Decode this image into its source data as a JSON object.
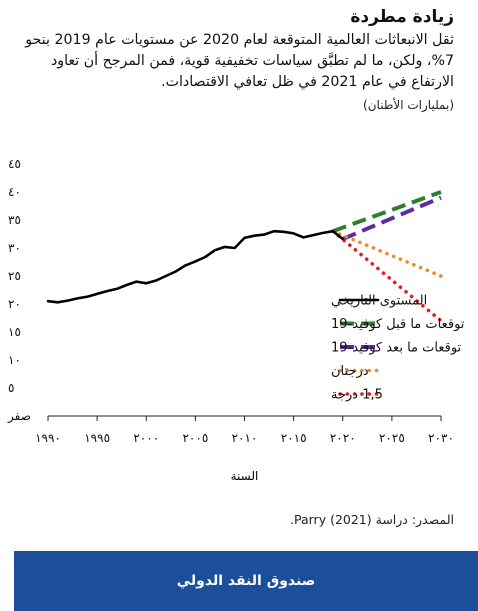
{
  "header": {
    "title": "زيادة مطردة",
    "subtitle": "ثقل الانبعاثات العالمية المتوقعة لعام 2020 عن مستويات عام 2019 بنحو 7%، ولكن، ما لم تطبَّق سياسات تخفيفية قوية، فمن المرجح أن تعاود الارتفاع في عام 2021 في ظل تعافي الاقتصادات.",
    "unit": "(بمليارات الأطنان)"
  },
  "source": "المصدر: دراسة (2021) Parry.",
  "footer": {
    "label": "صندوق النقد الدولي"
  },
  "colors": {
    "historical": "#000000",
    "pre_covid": "#2e7d32",
    "post_covid": "#5a2ca0",
    "two_degrees": "#f08a24",
    "one_five_degrees": "#e01e1e",
    "footer_bg": "#1b4f9b"
  },
  "chart_data": {
    "type": "line",
    "xlabel": "السنة",
    "ylabel": "",
    "xlim": [
      1990,
      2030
    ],
    "ylim": [
      0,
      45
    ],
    "xticks": [
      1990,
      1995,
      2000,
      2005,
      2010,
      2015,
      2020,
      2025,
      2030
    ],
    "xtick_labels": [
      "١٩٩٠",
      "١٩٩٥",
      "٢٠٠٠",
      "٢٠٠٥",
      "٢٠١٠",
      "٢٠١٥",
      "٢٠٢٠",
      "٢٠٢٥",
      "٢٠٣٠"
    ],
    "yticks": [
      0,
      5,
      10,
      15,
      20,
      25,
      30,
      35,
      40,
      45
    ],
    "ytick_labels": [
      "صفر",
      "٥",
      "١٠",
      "١٥",
      "٢٠",
      "٢٥",
      "٣٠",
      "٣٥",
      "٤٠",
      "٤٥"
    ],
    "grid": false,
    "legend_position": "center-right",
    "series": [
      {
        "name": "المستوى التاريخي",
        "style": "solid",
        "color": "#000000",
        "x": [
          1990,
          1991,
          1992,
          1993,
          1994,
          1995,
          1996,
          1997,
          1998,
          1999,
          2000,
          2001,
          2002,
          2003,
          2004,
          2005,
          2006,
          2007,
          2008,
          2009,
          2010,
          2011,
          2012,
          2013,
          2014,
          2015,
          2016,
          2017,
          2018,
          2019,
          2020
        ],
        "y": [
          20.5,
          20.3,
          20.6,
          21.0,
          21.3,
          21.8,
          22.3,
          22.7,
          23.4,
          24.0,
          23.7,
          24.2,
          25.0,
          25.8,
          26.9,
          27.6,
          28.4,
          29.6,
          30.2,
          30.0,
          31.8,
          32.2,
          32.4,
          33.0,
          32.9,
          32.6,
          31.9,
          32.3,
          32.7,
          33.0,
          31.6
        ]
      },
      {
        "name": "توقعات ما قبل كوفيد-19",
        "style": "dashed",
        "color": "#2e7d32",
        "x": [
          2019,
          2030
        ],
        "y": [
          33.0,
          40.0
        ]
      },
      {
        "name": "توقعات ما بعد كوفيد-19",
        "style": "dashed",
        "color": "#5a2ca0",
        "x": [
          2020,
          2030
        ],
        "y": [
          31.6,
          39.0
        ]
      },
      {
        "name": "درجتان",
        "style": "dotted",
        "color": "#f08a24",
        "x": [
          2019,
          2030
        ],
        "y": [
          33.0,
          25.0
        ]
      },
      {
        "name": "1,5 درجة",
        "style": "dotted",
        "color": "#e01e1e",
        "x": [
          2019,
          2030
        ],
        "y": [
          33.0,
          17.0
        ]
      }
    ]
  }
}
